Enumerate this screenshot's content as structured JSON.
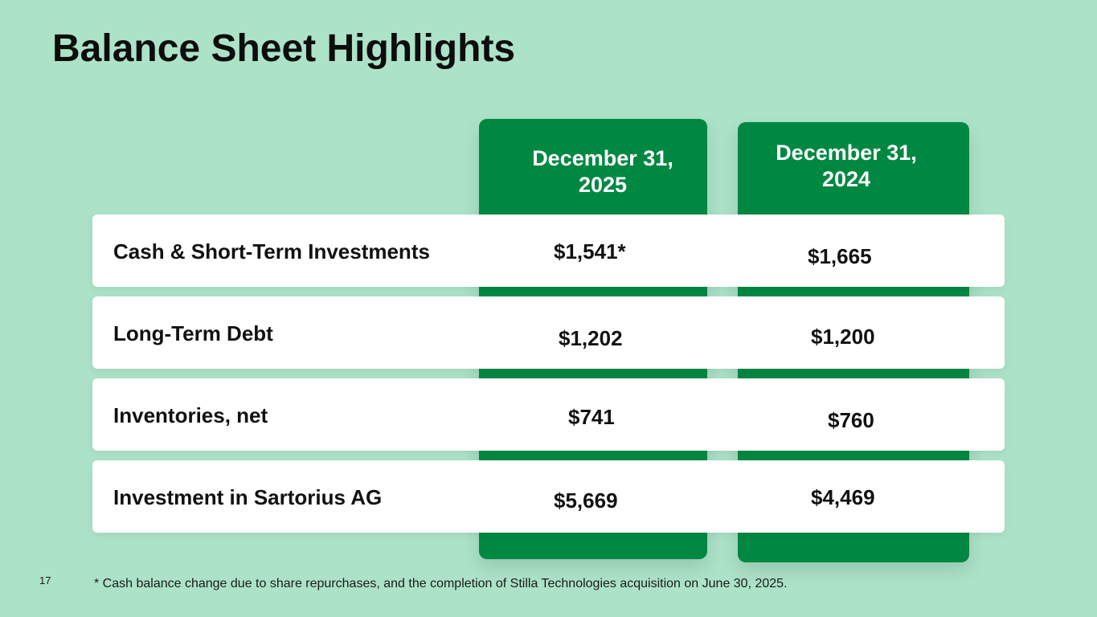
{
  "title": "Balance Sheet Highlights",
  "columns": {
    "col_2025": "December 31,\n2025",
    "col_2024": "December 31,\n2024"
  },
  "rows": [
    {
      "label": "Cash & Short-Term Investments",
      "v2025": "$1,541*",
      "v2024": "$1,665"
    },
    {
      "label": "Long-Term Debt",
      "v2025": "$1,202",
      "v2024": "$1,200"
    },
    {
      "label": "Inventories, net",
      "v2025": "$741",
      "v2024": "$760"
    },
    {
      "label": "Investment in Sartorius AG",
      "v2025": "$5,669",
      "v2024": "$4,469"
    }
  ],
  "footnote": "* Cash balance change due to share repurchases, and the completion of Stilla Technologies acquisition on June 30, 2025.",
  "page_number": "17",
  "colors": {
    "background": "#ace2c8",
    "accent_green": "#008842",
    "row_background": "#ffffff"
  }
}
